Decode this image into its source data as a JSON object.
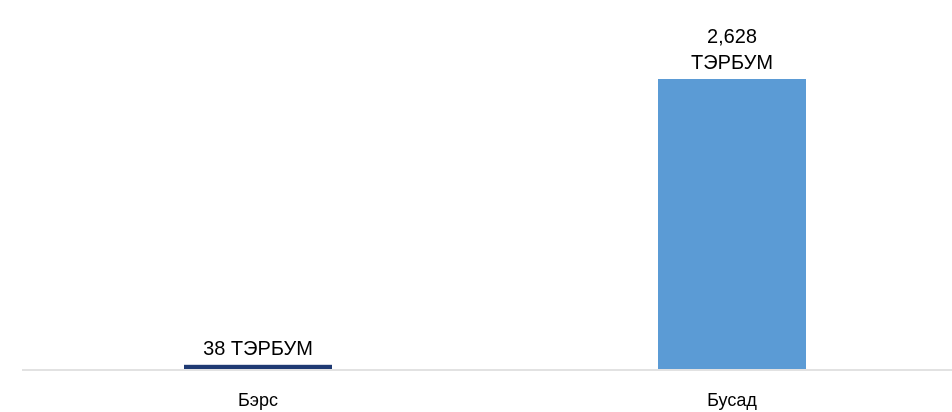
{
  "chart_data": {
    "type": "bar",
    "title": "",
    "xlabel": "",
    "ylabel": "",
    "unit": "ТЭРБУМ",
    "categories": [
      "Бэрс",
      "Бусад"
    ],
    "values": [
      38,
      2628
    ],
    "data_labels": [
      [
        "38 ТЭРБУМ"
      ],
      [
        "2,628",
        "ТЭРБУМ"
      ]
    ],
    "colors": [
      "#1f3a73",
      "#5b9bd5"
    ],
    "ylim": [
      0,
      2628
    ],
    "grid": false,
    "legend": "none"
  },
  "axis_color": "#d9d9d9"
}
